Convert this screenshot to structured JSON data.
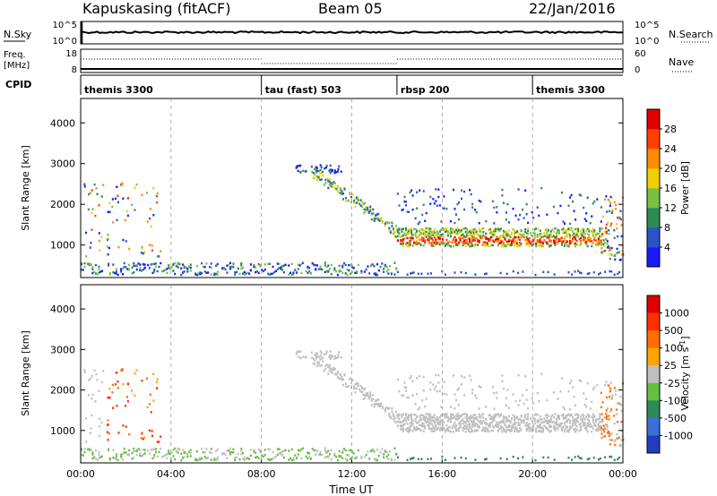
{
  "header": {
    "station": "Kapuskasing (fitACF)",
    "beam": "Beam 05",
    "date": "22/Jan/2016"
  },
  "panels": {
    "nsky": {
      "label": "N.Sky",
      "ytick_labels": [
        "10^5",
        "10^0"
      ],
      "right_tick_labels": [
        "10^5",
        "10^0"
      ],
      "right_label": "N.Search"
    },
    "freq": {
      "label_top": "Freq.",
      "label_unit": "[MHz]",
      "ytick_labels": [
        "18",
        "8"
      ],
      "right_tick_labels": [
        "60",
        "0"
      ],
      "right_label": "Nave"
    },
    "cpid": {
      "label": "CPID",
      "segments": [
        {
          "name": "themis 3300",
          "start_h": 0
        },
        {
          "name": "tau (fast) 503",
          "start_h": 8
        },
        {
          "name": "rbsp 200",
          "start_h": 14
        },
        {
          "name": "themis 3300",
          "start_h": 20
        }
      ]
    }
  },
  "chart_data": [
    {
      "type": "heatmap",
      "id": "power",
      "ylabel": "Slant Range [km]",
      "ylim": [
        200,
        4600
      ],
      "yticks": [
        1000,
        2000,
        3000,
        4000
      ],
      "colorbar": {
        "label": "Power [dB]",
        "ticks": [
          "4",
          "8",
          "12",
          "16",
          "20",
          "24",
          "28"
        ],
        "colors": [
          "#1a1aff",
          "#2a55c8",
          "#2e8b57",
          "#7ac043",
          "#f0d000",
          "#ff8c00",
          "#ff4000",
          "#e00000"
        ]
      }
    },
    {
      "type": "heatmap",
      "id": "velocity",
      "ylabel": "Slant Range [km]",
      "ylim": [
        200,
        4600
      ],
      "yticks": [
        1000,
        2000,
        3000,
        4000
      ],
      "colorbar": {
        "label": "Velocity [m s^-1]",
        "ticks": [
          "1000",
          "500",
          "100",
          "25",
          "-25",
          "-100",
          "-500",
          "-1000"
        ],
        "colors": [
          "#1f3fc0",
          "#3b6fd8",
          "#2e8b57",
          "#66c040",
          "#c0c0c0",
          "#ffa500",
          "#ff7000",
          "#ff3000",
          "#e00000"
        ]
      }
    }
  ],
  "time_axis": {
    "xlabel": "Time UT",
    "tick_labels": [
      "00:00",
      "04:00",
      "08:00",
      "12:00",
      "16:00",
      "20:00",
      "00:00"
    ],
    "xlim_hours": [
      0,
      24
    ]
  }
}
